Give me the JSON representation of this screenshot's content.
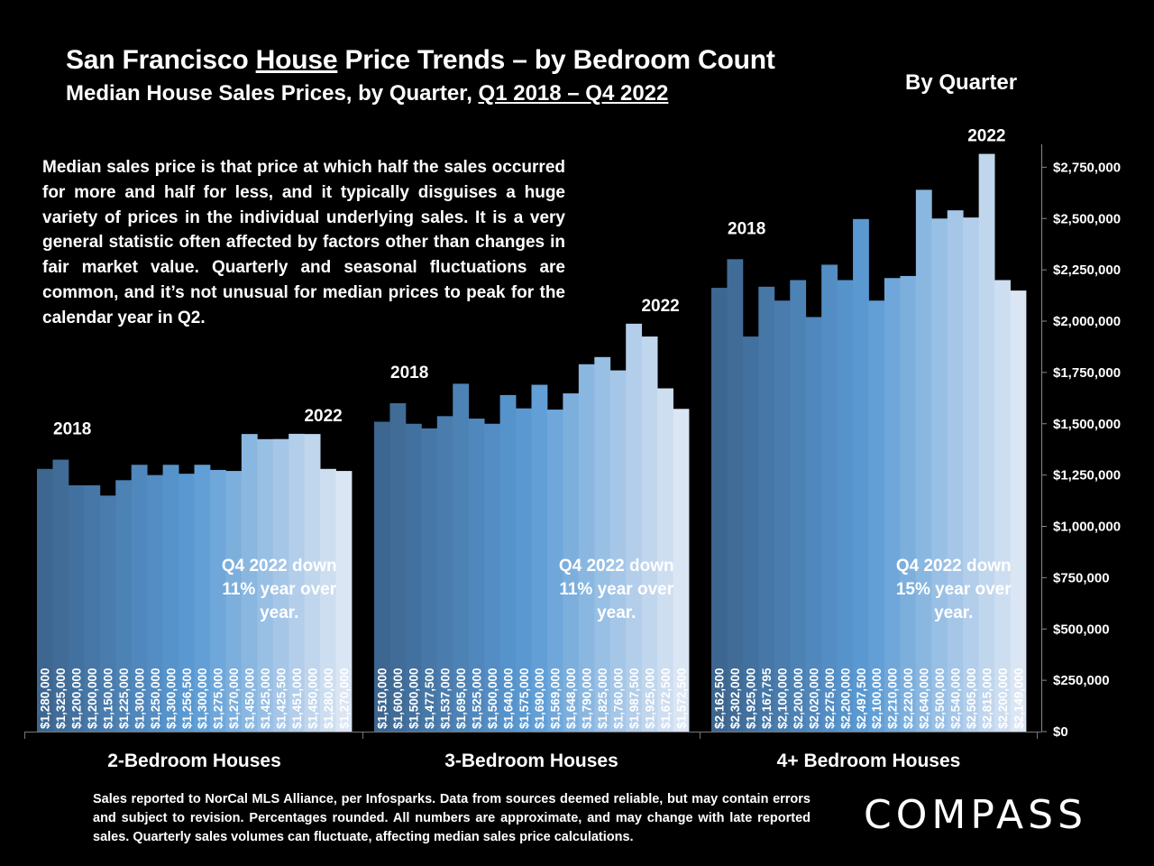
{
  "header": {
    "title_prefix": "San Francisco ",
    "title_underlined": "House",
    "title_suffix": " Price Trends – by Bedroom Count",
    "subtitle_prefix": "Median House Sales Prices, by Quarter, ",
    "subtitle_underlined": "Q1 2018 – Q4 2022",
    "by_quarter": "By Quarter"
  },
  "description": "Median sales price is that price at which half the sales occurred for more and half for less, and it typically disguises a huge variety of prices in the individual underlying sales. It is a very general statistic often affected by factors other than changes in fair market value. Quarterly and seasonal fluctuations are common, and it’s not unusual for median prices to peak for the calendar year in Q2.",
  "footnote": "Sales reported to NorCal MLS Alliance, per Infosparks. Data from sources deemed reliable, but may contain errors and subject to revision. Percentages rounded. All numbers are approximate, and may change with late reported sales. Quarterly sales volumes can fluctuate, affecting median sales price calculations.",
  "logo": "COMPASS",
  "colors": {
    "background": "#000000",
    "bar_start": "#3d6690",
    "bar_mid": "#5b9bd5",
    "bar_end": "#dbe6f4",
    "text": "#ffffff"
  },
  "chart_data": {
    "type": "bar",
    "title": "San Francisco House Price Trends – by Bedroom Count",
    "subtitle": "Median House Sales Prices, by Quarter, Q1 2018 – Q4 2022",
    "ylim": [
      0,
      2800000
    ],
    "y_ticks": [
      0,
      250000,
      500000,
      750000,
      1000000,
      1250000,
      1500000,
      1750000,
      2000000,
      2250000,
      2500000,
      2750000
    ],
    "y_tick_labels": [
      "$0",
      "$250,000",
      "$500,000",
      "$750,000",
      "$1,000,000",
      "$1,250,000",
      "$1,500,000",
      "$1,750,000",
      "$2,000,000",
      "$2,250,000",
      "$2,500,000",
      "$2,750,000"
    ],
    "grid": false,
    "axis_side": "right",
    "groups": [
      {
        "name": "2-Bedroom Houses",
        "start_label": "2018",
        "end_label": "2022",
        "note": [
          "Q4 2022 down",
          "11% year over",
          "year."
        ],
        "values": [
          1280000,
          1325000,
          1200000,
          1200000,
          1150000,
          1225000,
          1300000,
          1250000,
          1300000,
          1256500,
          1300000,
          1275000,
          1270000,
          1450000,
          1425000,
          1425500,
          1451000,
          1450000,
          1280000,
          1270000
        ],
        "value_labels": [
          "$1,280,000",
          "$1,325,000",
          "$1,200,000",
          "$1,200,000",
          "$1,150,000",
          "$1,225,000",
          "$1,300,000",
          "$1,250,000",
          "$1,300,000",
          "$1,256,500",
          "$1,300,000",
          "$1,275,000",
          "$1,270,000",
          "$1,450,000",
          "$1,425,000",
          "$1,425,500",
          "$1,451,000",
          "$1,450,000",
          "$1,280,000",
          "$1,270,000"
        ]
      },
      {
        "name": "3-Bedroom Houses",
        "start_label": "2018",
        "end_label": "2022",
        "note": [
          "Q4 2022 down",
          "11% year over",
          "year."
        ],
        "values": [
          1510000,
          1600000,
          1500000,
          1477500,
          1537000,
          1695000,
          1525000,
          1500000,
          1640000,
          1575000,
          1690000,
          1569000,
          1648000,
          1790000,
          1825000,
          1760000,
          1987500,
          1925000,
          1672500,
          1572500
        ],
        "value_labels": [
          "$1,510,000",
          "$1,600,000",
          "$1,500,000",
          "$1,477,500",
          "$1,537,000",
          "$1,695,000",
          "$1,525,000",
          "$1,500,000",
          "$1,640,000",
          "$1,575,000",
          "$1,690,000",
          "$1,569,000",
          "$1,648,000",
          "$1,790,000",
          "$1,825,000",
          "$1,760,000",
          "$1,987,500",
          "$1,925,000",
          "$1,672,500",
          "$1,572,500"
        ]
      },
      {
        "name": "4+ Bedroom Houses",
        "start_label": "2018",
        "end_label": "2022",
        "note": [
          "Q4 2022 down",
          "15% year over",
          "year."
        ],
        "values": [
          2162500,
          2302000,
          1925000,
          2167795,
          2100000,
          2200000,
          2020000,
          2275000,
          2200000,
          2497500,
          2100000,
          2210000,
          2220000,
          2640000,
          2500000,
          2540000,
          2505000,
          2815000,
          2200000,
          2149000
        ],
        "value_labels": [
          "$2,162,500",
          "$2,302,000",
          "$1,925,000",
          "$2,167,795",
          "$2,100,000",
          "$2,200,000",
          "$2,020,000",
          "$2,275,000",
          "$2,200,000",
          "$2,497,500",
          "$2,100,000",
          "$2,210,000",
          "$2,220,000",
          "$2,640,000",
          "$2,500,000",
          "$2,540,000",
          "$2,505,000",
          "$2,815,000",
          "$2,200,000",
          "$2,149,000"
        ]
      }
    ]
  }
}
